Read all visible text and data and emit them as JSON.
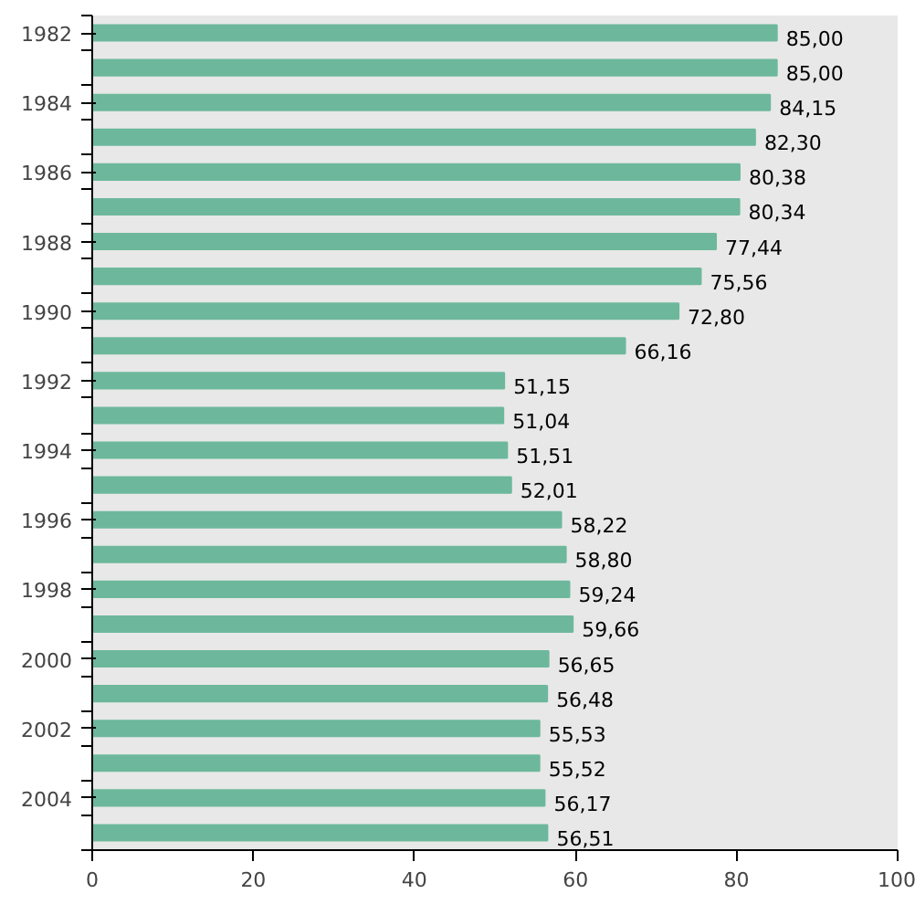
{
  "chart_data": {
    "type": "bar",
    "orientation": "horizontal",
    "categories": [
      "1982",
      null,
      "1984",
      null,
      "1986",
      null,
      "1988",
      null,
      "1990",
      null,
      "1992",
      null,
      "1994",
      null,
      "1996",
      null,
      "1998",
      null,
      "2000",
      null,
      "2002",
      null,
      "2004",
      null
    ],
    "values": [
      85.0,
      85.0,
      84.15,
      82.3,
      80.38,
      80.34,
      77.44,
      75.56,
      72.8,
      66.16,
      51.15,
      51.04,
      51.51,
      52.01,
      58.22,
      58.8,
      59.24,
      59.66,
      56.65,
      56.48,
      55.53,
      55.52,
      56.17,
      56.51
    ],
    "value_labels": [
      "85,00",
      "85,00",
      "84,15",
      "82,30",
      "80,38",
      "80,34",
      "77,44",
      "75,56",
      "72,80",
      "66,16",
      "51,15",
      "51,04",
      "51,51",
      "52,01",
      "58,22",
      "58,80",
      "59,24",
      "59,66",
      "56,65",
      "56,48",
      "55,53",
      "55,52",
      "56,17",
      "56,51"
    ],
    "color": "#6db89c",
    "xlim": [
      0,
      100
    ],
    "xticks": [
      0,
      20,
      40,
      60,
      80,
      100
    ]
  }
}
